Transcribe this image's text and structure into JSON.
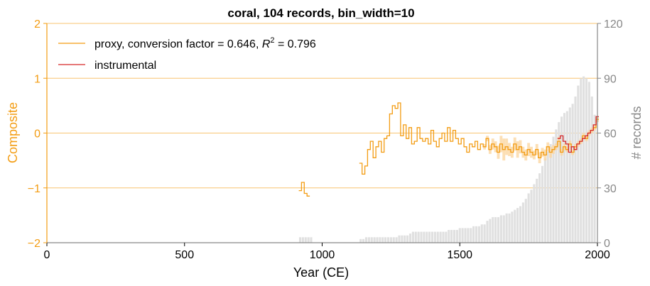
{
  "chart_data": {
    "type": "line",
    "title": "coral, 104 records, bin_width=10",
    "xlabel": "Year (CE)",
    "ylabel": "Composite",
    "y2label": "# records",
    "xlim": [
      0,
      2000
    ],
    "ylim": [
      -2,
      2
    ],
    "y2lim": [
      0,
      120
    ],
    "x_ticks": [
      "0",
      "500",
      "1000",
      "1500",
      "2000"
    ],
    "y_ticks": [
      "−2",
      "−1",
      "0",
      "1",
      "2"
    ],
    "y2_ticks": [
      "0",
      "30",
      "60",
      "90",
      "120"
    ],
    "grid": "horizontal",
    "legend_position": "top-left",
    "colors": {
      "proxy": "#f39c12",
      "band": "#fbd7a3",
      "instrumental": "#d62728",
      "records": "#e0e0e0",
      "left_axis": "#f39c12",
      "right_axis": "#888888"
    },
    "legend": [
      {
        "label_pre": "proxy, conversion factor = 0.646, ",
        "label_r": "R",
        "label_sup": "2",
        "label_post": " = 0.796",
        "series": "proxy"
      },
      {
        "label_pre": "instrumental",
        "label_r": "",
        "label_sup": "",
        "label_post": "",
        "series": "instrumental"
      }
    ],
    "series": [
      {
        "name": "proxy",
        "x": [
          920,
          930,
          940,
          950,
          1140,
          1150,
          1160,
          1170,
          1180,
          1190,
          1200,
          1210,
          1220,
          1230,
          1240,
          1250,
          1260,
          1270,
          1280,
          1290,
          1300,
          1310,
          1320,
          1330,
          1340,
          1350,
          1360,
          1370,
          1380,
          1390,
          1400,
          1410,
          1420,
          1430,
          1440,
          1450,
          1460,
          1470,
          1480,
          1490,
          1500,
          1510,
          1520,
          1530,
          1540,
          1550,
          1560,
          1570,
          1580,
          1590,
          1600,
          1610,
          1620,
          1630,
          1640,
          1650,
          1660,
          1670,
          1680,
          1690,
          1700,
          1710,
          1720,
          1730,
          1740,
          1750,
          1760,
          1770,
          1780,
          1790,
          1800,
          1810,
          1820,
          1830,
          1840,
          1850,
          1860,
          1870,
          1880,
          1890,
          1900,
          1910,
          1920,
          1930,
          1940,
          1950,
          1960,
          1970,
          1980,
          1990,
          2000
        ],
        "y": [
          -1.05,
          -0.9,
          -1.1,
          -1.15,
          -0.55,
          -0.75,
          -0.6,
          -0.3,
          -0.15,
          -0.45,
          -0.25,
          -0.15,
          -0.35,
          -0.1,
          -0.05,
          0.35,
          0.5,
          0.45,
          0.55,
          -0.05,
          0.15,
          -0.1,
          0.1,
          -0.2,
          -0.15,
          0.1,
          -0.1,
          -0.15,
          -0.1,
          -0.2,
          0.05,
          -0.15,
          -0.25,
          -0.1,
          0.0,
          -0.15,
          0.1,
          -0.15,
          0.05,
          -0.1,
          -0.2,
          -0.1,
          -0.25,
          -0.35,
          -0.2,
          -0.25,
          -0.15,
          -0.3,
          -0.2,
          -0.25,
          -0.1,
          -0.3,
          -0.2,
          -0.25,
          -0.35,
          -0.2,
          -0.3,
          -0.25,
          -0.3,
          -0.35,
          -0.2,
          -0.3,
          -0.25,
          -0.35,
          -0.4,
          -0.3,
          -0.35,
          -0.4,
          -0.3,
          -0.45,
          -0.35,
          -0.4,
          -0.25,
          -0.35,
          -0.3,
          -0.25,
          -0.15,
          -0.35,
          -0.25,
          -0.3,
          -0.2,
          -0.35,
          -0.25,
          -0.2,
          -0.15,
          -0.05,
          -0.1,
          0.0,
          0.05,
          0.1,
          0.25
        ],
        "band_half_width": [
          0,
          0,
          0,
          0,
          0,
          0,
          0,
          0,
          0,
          0,
          0,
          0,
          0,
          0,
          0,
          0,
          0,
          0,
          0,
          0,
          0,
          0,
          0,
          0,
          0,
          0,
          0,
          0,
          0,
          0,
          0,
          0,
          0,
          0,
          0,
          0,
          0,
          0,
          0,
          0,
          0,
          0,
          0,
          0,
          0,
          0,
          0,
          0,
          0,
          0.05,
          0.05,
          0.08,
          0.1,
          0.1,
          0.12,
          0.15,
          0.2,
          0.15,
          0.12,
          0.1,
          0.12,
          0.15,
          0.12,
          0.1,
          0.1,
          0.12,
          0.1,
          0.08,
          0.1,
          0.1,
          0.08,
          0.1,
          0.08,
          0.1,
          0.08,
          0.06,
          0.08,
          0.06,
          0.06,
          0.05,
          0.06,
          0.05,
          0.05,
          0.05,
          0.05,
          0.05,
          0.05,
          0.05,
          0.05,
          0.05,
          0.05
        ]
      },
      {
        "name": "instrumental",
        "x": [
          1860,
          1870,
          1880,
          1890,
          1900,
          1910,
          1920,
          1930,
          1940,
          1950,
          1960,
          1970,
          1980,
          1990,
          2000
        ],
        "y": [
          -0.1,
          -0.05,
          -0.15,
          -0.2,
          -0.35,
          -0.25,
          -0.3,
          -0.2,
          -0.15,
          -0.1,
          -0.05,
          0.0,
          0.05,
          0.15,
          0.3
        ]
      }
    ],
    "records": {
      "x": [
        920,
        930,
        940,
        950,
        960,
        1140,
        1150,
        1160,
        1170,
        1180,
        1190,
        1200,
        1210,
        1220,
        1230,
        1240,
        1250,
        1260,
        1270,
        1280,
        1290,
        1300,
        1310,
        1320,
        1330,
        1340,
        1350,
        1360,
        1370,
        1380,
        1390,
        1400,
        1410,
        1420,
        1430,
        1440,
        1450,
        1460,
        1470,
        1480,
        1490,
        1500,
        1510,
        1520,
        1530,
        1540,
        1550,
        1560,
        1570,
        1580,
        1590,
        1600,
        1610,
        1620,
        1630,
        1640,
        1650,
        1660,
        1670,
        1680,
        1690,
        1700,
        1710,
        1720,
        1730,
        1740,
        1750,
        1760,
        1770,
        1780,
        1790,
        1800,
        1810,
        1820,
        1830,
        1840,
        1850,
        1860,
        1870,
        1880,
        1890,
        1900,
        1910,
        1920,
        1930,
        1940,
        1950,
        1960,
        1970,
        1980,
        1990,
        2000
      ],
      "count": [
        3,
        3,
        3,
        3,
        3,
        2,
        2,
        3,
        3,
        3,
        3,
        3,
        3,
        3,
        3,
        3,
        3,
        3,
        3,
        4,
        4,
        4,
        4,
        5,
        6,
        6,
        6,
        6,
        6,
        6,
        6,
        6,
        6,
        6,
        6,
        6,
        6,
        7,
        7,
        7,
        7,
        8,
        8,
        8,
        8,
        8,
        9,
        9,
        9,
        10,
        10,
        12,
        13,
        14,
        14,
        14,
        15,
        15,
        16,
        16,
        17,
        18,
        19,
        20,
        22,
        24,
        27,
        29,
        32,
        35,
        38,
        42,
        46,
        50,
        54,
        58,
        62,
        66,
        69,
        71,
        72,
        74,
        76,
        80,
        86,
        90,
        91,
        90,
        88,
        80,
        70
      ]
    }
  }
}
